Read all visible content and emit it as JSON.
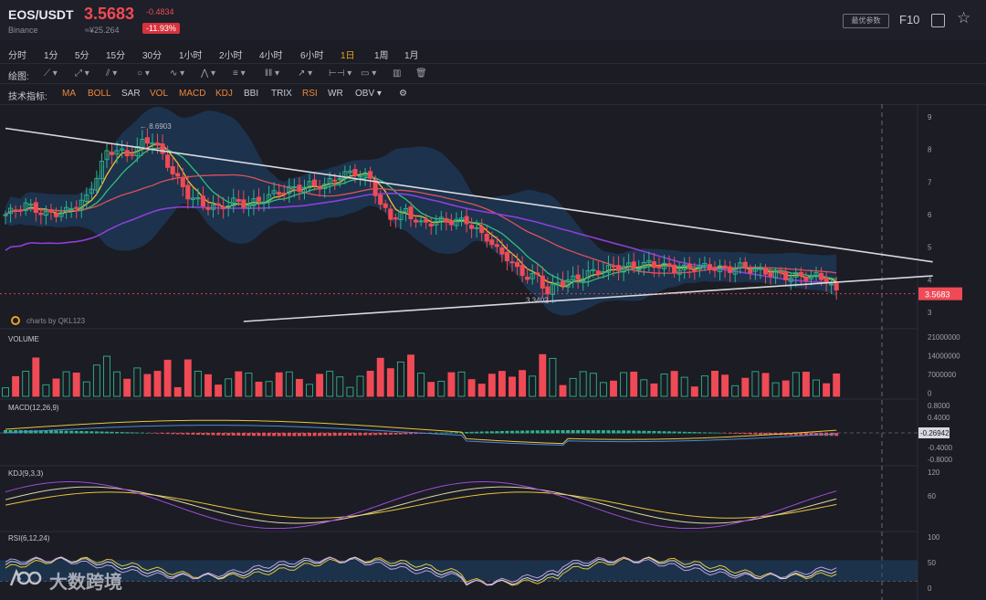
{
  "header": {
    "pair": "EOS/USDT",
    "exchange": "Binance",
    "price": "3.5683",
    "cny_price": "≈¥25.264",
    "change": "-0.4834",
    "change_pct": "-11.93%",
    "button_label": "最优参数",
    "f10_label": "F10"
  },
  "intervals": [
    "分时",
    "1分",
    "5分",
    "15分",
    "30分",
    "1小时",
    "2小时",
    "4小时",
    "6小时",
    "1日",
    "1周",
    "1月"
  ],
  "active_interval": "1日",
  "draw_label": "绘图:",
  "indicator_label": "技术指标:",
  "indicators": [
    {
      "name": "MA",
      "active": true
    },
    {
      "name": "BOLL",
      "active": true
    },
    {
      "name": "SAR",
      "active": false
    },
    {
      "name": "VOL",
      "active": true
    },
    {
      "name": "MACD",
      "active": true
    },
    {
      "name": "KDJ",
      "active": true
    },
    {
      "name": "BBI",
      "active": false
    },
    {
      "name": "TRIX",
      "active": false
    },
    {
      "name": "RSI",
      "active": true
    },
    {
      "name": "WR",
      "active": false
    },
    {
      "name": "OBV",
      "active": false
    }
  ],
  "colors": {
    "up": "#2fb48a",
    "down": "#ef4a55",
    "bg": "#1b1c24",
    "boll_fill": "#1e4670",
    "accent": "#f0a020"
  },
  "chart_data": {
    "type": "candlestick",
    "main": {
      "ylim": [
        3,
        9
      ],
      "yticks": [
        3,
        4,
        5,
        6,
        7,
        8,
        9
      ],
      "high_label": "8.6903",
      "low_label": "3.3402",
      "last_price_label": "3.5683",
      "source_label": "charts by QKL123",
      "anchors_close": [
        [
          0,
          6.0
        ],
        [
          4,
          6.3
        ],
        [
          8,
          6.0
        ],
        [
          12,
          6.1
        ],
        [
          16,
          6.5
        ],
        [
          18,
          7.2
        ],
        [
          20,
          7.9
        ],
        [
          22,
          8.0
        ],
        [
          24,
          7.8
        ],
        [
          27,
          8.2
        ],
        [
          29,
          8.3
        ],
        [
          31,
          7.8
        ],
        [
          33,
          7.3
        ],
        [
          36,
          6.6
        ],
        [
          39,
          6.3
        ],
        [
          42,
          6.2
        ],
        [
          45,
          6.4
        ],
        [
          48,
          6.3
        ],
        [
          51,
          6.5
        ],
        [
          54,
          6.7
        ],
        [
          57,
          6.8
        ],
        [
          60,
          6.9
        ],
        [
          63,
          6.9
        ],
        [
          66,
          7.2
        ],
        [
          69,
          7.3
        ],
        [
          72,
          7.1
        ],
        [
          74,
          6.3
        ],
        [
          76,
          5.9
        ],
        [
          79,
          6.1
        ],
        [
          82,
          5.7
        ],
        [
          85,
          5.8
        ],
        [
          88,
          5.8
        ],
        [
          91,
          5.8
        ],
        [
          93,
          5.5
        ],
        [
          95,
          5.3
        ],
        [
          97,
          4.9
        ],
        [
          99,
          4.7
        ],
        [
          101,
          4.3
        ],
        [
          103,
          4.1
        ],
        [
          105,
          4.1
        ],
        [
          107,
          3.6
        ],
        [
          109,
          3.9
        ],
        [
          112,
          4.0
        ],
        [
          115,
          4.2
        ],
        [
          118,
          4.3
        ],
        [
          121,
          4.4
        ],
        [
          124,
          4.4
        ],
        [
          127,
          4.5
        ],
        [
          130,
          4.4
        ],
        [
          133,
          4.3
        ],
        [
          136,
          4.4
        ],
        [
          139,
          4.4
        ],
        [
          142,
          4.3
        ],
        [
          145,
          4.4
        ],
        [
          148,
          4.3
        ],
        [
          151,
          4.2
        ],
        [
          154,
          4.1
        ],
        [
          157,
          4.1
        ],
        [
          160,
          4.1
        ],
        [
          162,
          4.0
        ],
        [
          164,
          3.6
        ]
      ],
      "trendlines": [
        {
          "from": [
            0,
            8.65
          ],
          "to": [
            183,
            4.55
          ]
        },
        {
          "from": [
            47,
            2.72
          ],
          "to": [
            183,
            4.12
          ]
        }
      ]
    },
    "volume": {
      "label": "VOLUME",
      "ylim": [
        0,
        21000000
      ],
      "yticks": [
        "21000000",
        "14000000",
        "7000000",
        "0"
      ]
    },
    "macd": {
      "label": "MACD(12,26,9)",
      "ylim": [
        -1.0,
        1.0
      ],
      "yticks": [
        "0.8000",
        "0.4000",
        "-0.4000",
        "-0.8000"
      ],
      "current": "-0.26942"
    },
    "kdj": {
      "label": "KDJ(9,3,3)",
      "ylim": [
        0,
        130
      ],
      "yticks": [
        "120",
        "60"
      ]
    },
    "rsi": {
      "label": "RSI(6,12,24)",
      "ylim": [
        0,
        100
      ],
      "yticks": [
        "100",
        "50",
        "0"
      ]
    }
  },
  "watermark": "大数跨境"
}
